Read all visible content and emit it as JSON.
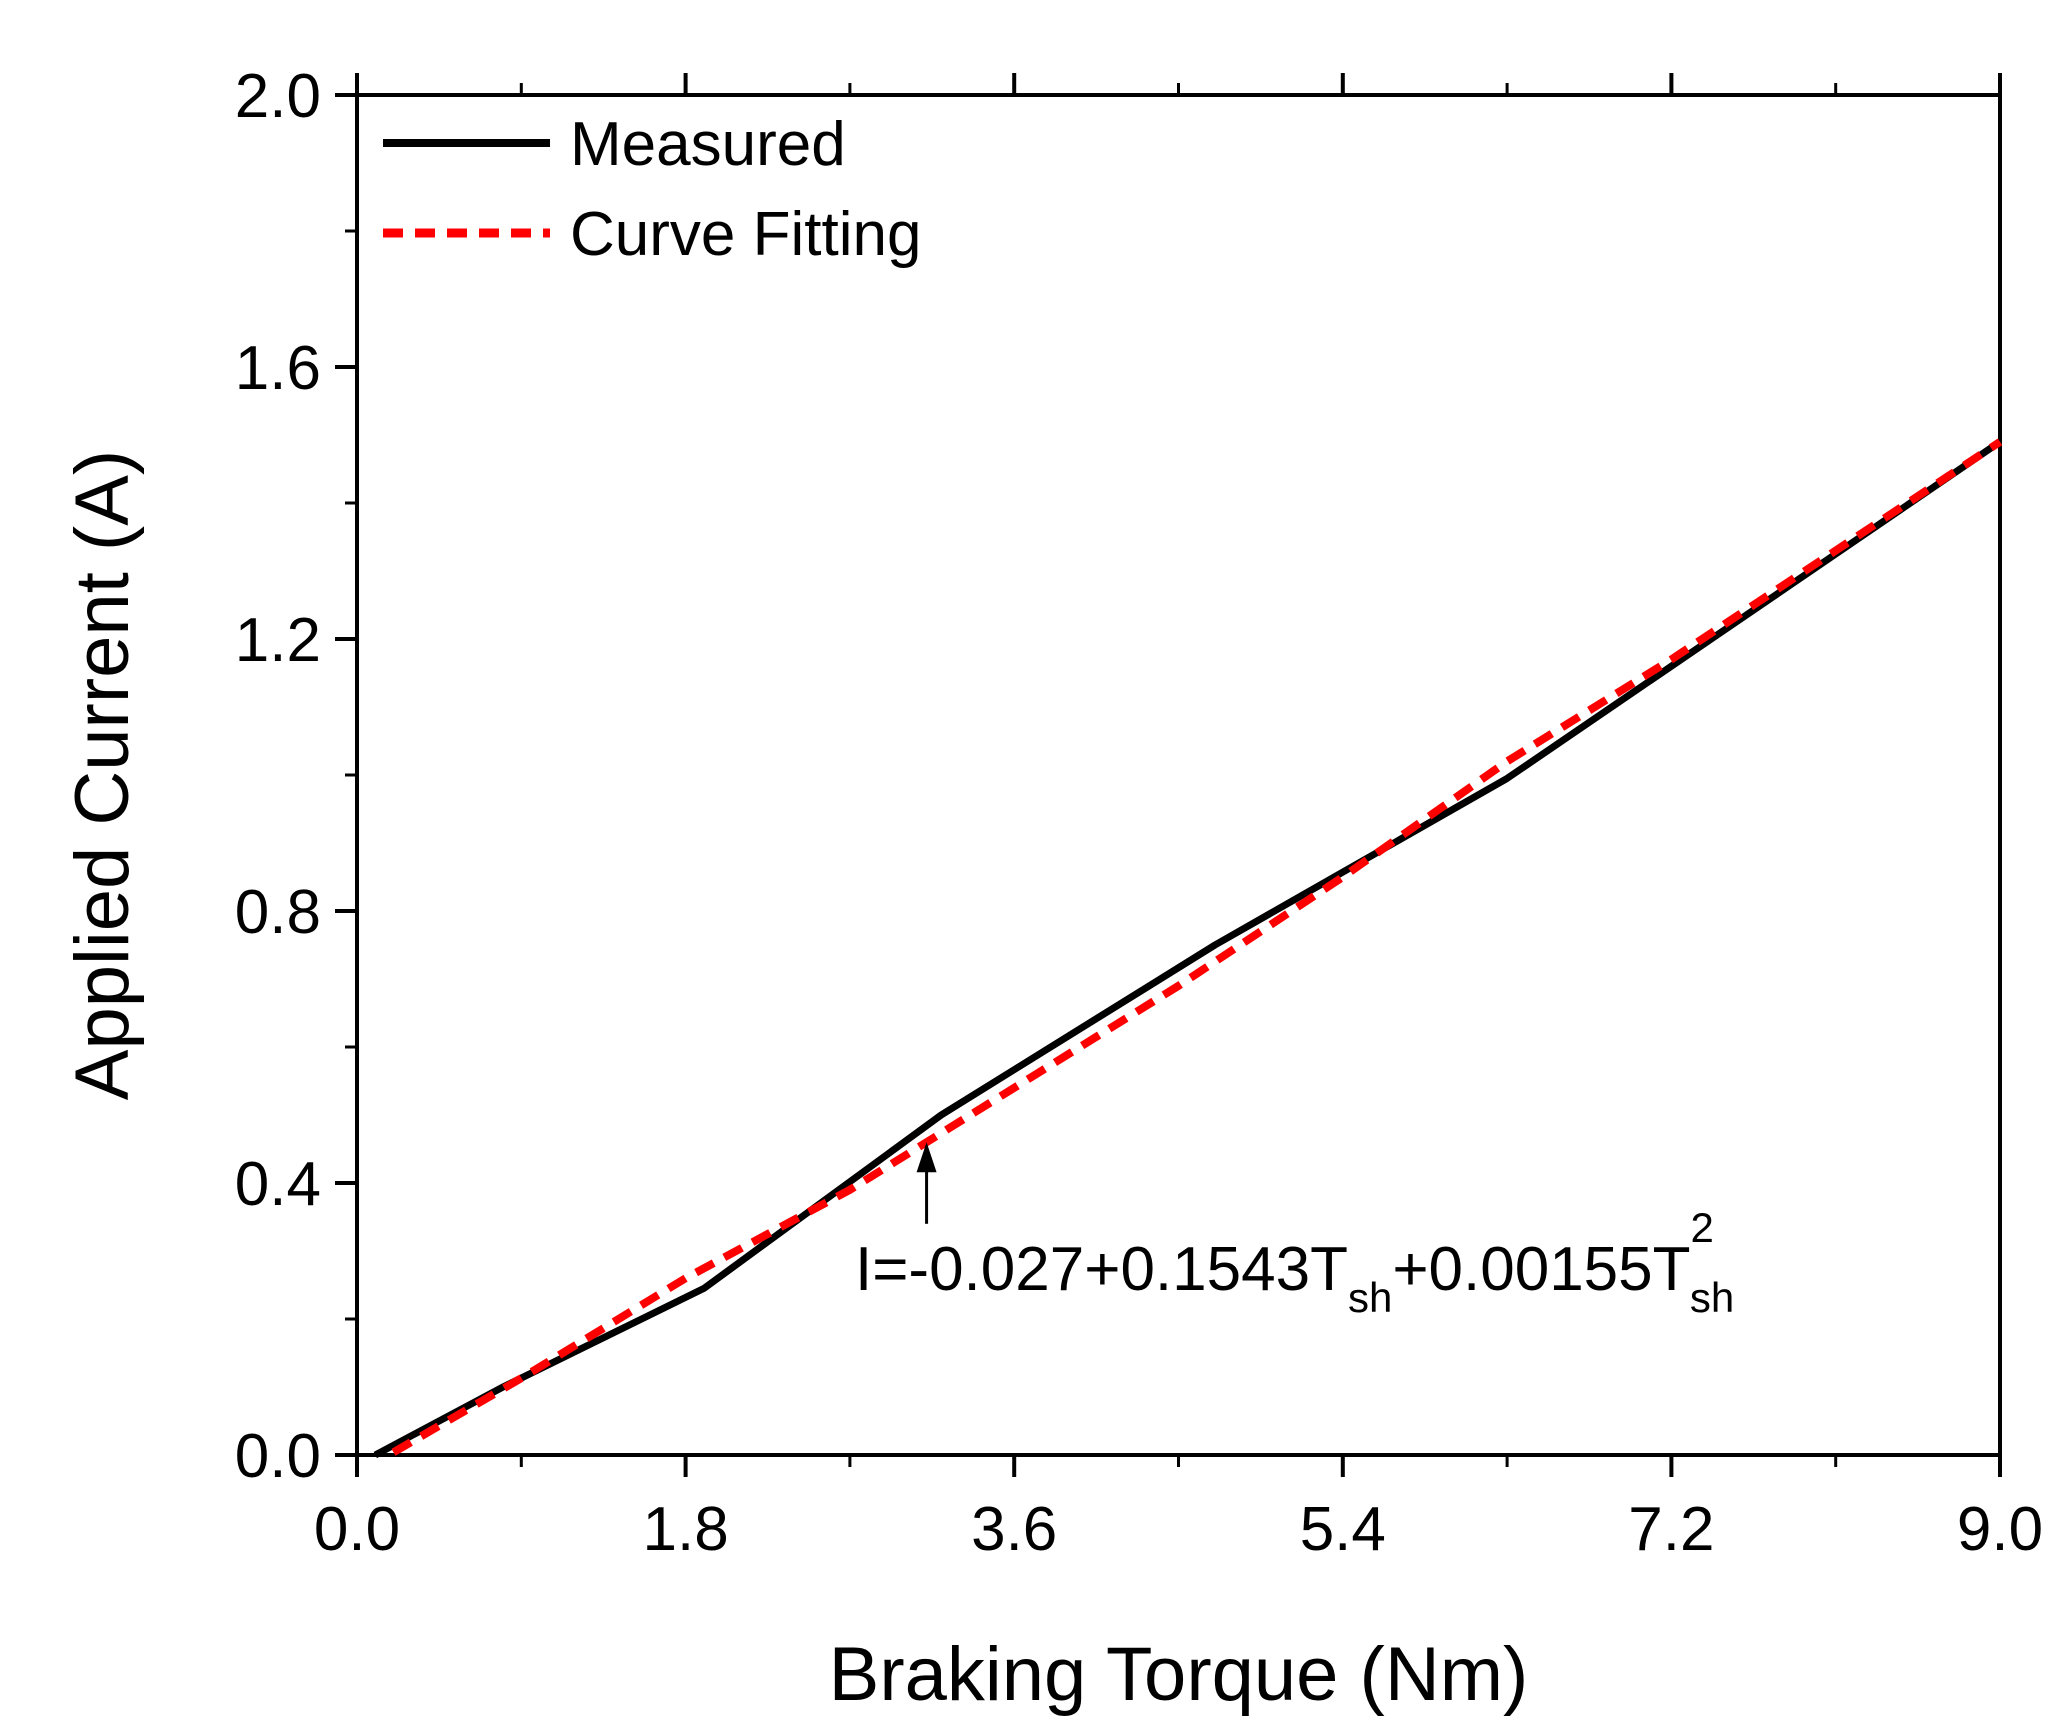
{
  "chart_data": {
    "type": "line",
    "title": "",
    "xlabel": "Braking Torque (Nm)",
    "ylabel": "Applied Current (A)",
    "xlim": [
      0,
      9
    ],
    "ylim": [
      0,
      2
    ],
    "xticks": [
      "0.0",
      "1.8",
      "3.6",
      "5.4",
      "7.2",
      "9.0"
    ],
    "yticks": [
      "0.0",
      "0.4",
      "0.8",
      "1.2",
      "1.6",
      "2.0"
    ],
    "grid": false,
    "legend_position": "top-left",
    "series": [
      {
        "name": "Measured",
        "color": "#000000",
        "style": "solid",
        "x": [
          0.1,
          0.8,
          1.9,
          3.2,
          4.7,
          6.3,
          7.2,
          9.0
        ],
        "y": [
          0.0,
          0.1,
          0.245,
          0.5,
          0.75,
          0.995,
          1.16,
          1.49
        ]
      },
      {
        "name": "Curve Fitting",
        "color": "#ff0000",
        "style": "dashed",
        "x": [
          0.2,
          0.9,
          1.8,
          2.7,
          3.6,
          4.5,
          5.4,
          6.3,
          7.2,
          8.1,
          9.0
        ],
        "y": [
          0.004,
          0.113,
          0.26,
          0.39,
          0.54,
          0.69,
          0.85,
          1.02,
          1.17,
          1.33,
          1.49
        ]
      }
    ],
    "annotation": {
      "parts": [
        {
          "text": "I=-0.027+0.1543T",
          "style": "normal"
        },
        {
          "text": "sh",
          "style": "sub"
        },
        {
          "text": "+0.00155T",
          "style": "normal"
        },
        {
          "text": "2",
          "style": "sup"
        },
        {
          "text": "sh",
          "style": "sub-after-sup"
        }
      ],
      "arrow_x": 3.12,
      "arrow_y_tip": 0.46,
      "arrow_y_tail": 0.34
    }
  }
}
